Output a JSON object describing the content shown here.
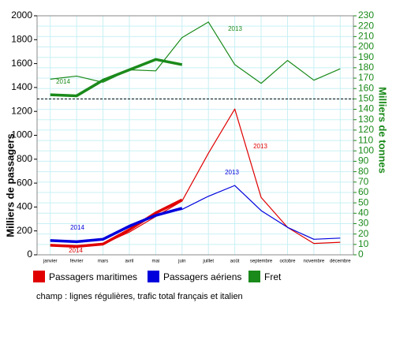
{
  "chart_data": {
    "type": "line",
    "categories": [
      "janvier",
      "février",
      "mars",
      "avril",
      "mai",
      "juin",
      "juillet",
      "août",
      "septembre",
      "octobre",
      "novembre",
      "décembre"
    ],
    "ylabel": "Milliers de passagers",
    "y2label": "Milliers de tonnes",
    "ylim": [
      0,
      2000
    ],
    "yticks": [
      0,
      200,
      400,
      600,
      800,
      1000,
      1200,
      1400,
      1600,
      1800,
      2000
    ],
    "y2lim": [
      0,
      230
    ],
    "y2ticks": [
      0,
      10,
      20,
      30,
      40,
      50,
      60,
      70,
      80,
      90,
      100,
      110,
      120,
      130,
      140,
      150,
      160,
      170,
      180,
      190,
      200,
      210,
      220,
      230
    ],
    "y2_separator": 150,
    "grid": true,
    "series": [
      {
        "name": "Passagers maritimes",
        "color": "#e00000",
        "axis": "y",
        "lines": [
          {
            "label": "2013",
            "values": [
              80,
              75,
              90,
              190,
              320,
              450,
              850,
              1220,
              480,
              230,
              95,
              105
            ]
          },
          {
            "label": "2014",
            "values": [
              80,
              70,
              90,
              210,
              350,
              460,
              null,
              null,
              null,
              null,
              null,
              null
            ]
          }
        ]
      },
      {
        "name": "Passagers aériens",
        "color": "#0000dd",
        "axis": "y",
        "lines": [
          {
            "label": "2013",
            "values": [
              120,
              110,
              130,
              230,
              330,
              380,
              490,
              580,
              370,
              230,
              130,
              140
            ]
          },
          {
            "label": "2014",
            "values": [
              120,
              110,
              130,
              240,
              330,
              390,
              null,
              null,
              null,
              null,
              null,
              null
            ]
          }
        ]
      },
      {
        "name": "Fret",
        "color": "#1a8a1a",
        "axis": "y2",
        "lines": [
          {
            "label": "2013",
            "values": [
              169,
              172,
              166,
              178,
              177,
              209,
              224,
              183,
              165,
              187,
              168,
              179
            ]
          },
          {
            "label": "2014",
            "values": [
              154,
              153,
              168,
              178,
              188,
              183,
              null,
              null,
              null,
              null,
              null,
              null
            ]
          }
        ]
      }
    ],
    "note": "champ : lignes régulières, trafic total français et italien"
  }
}
